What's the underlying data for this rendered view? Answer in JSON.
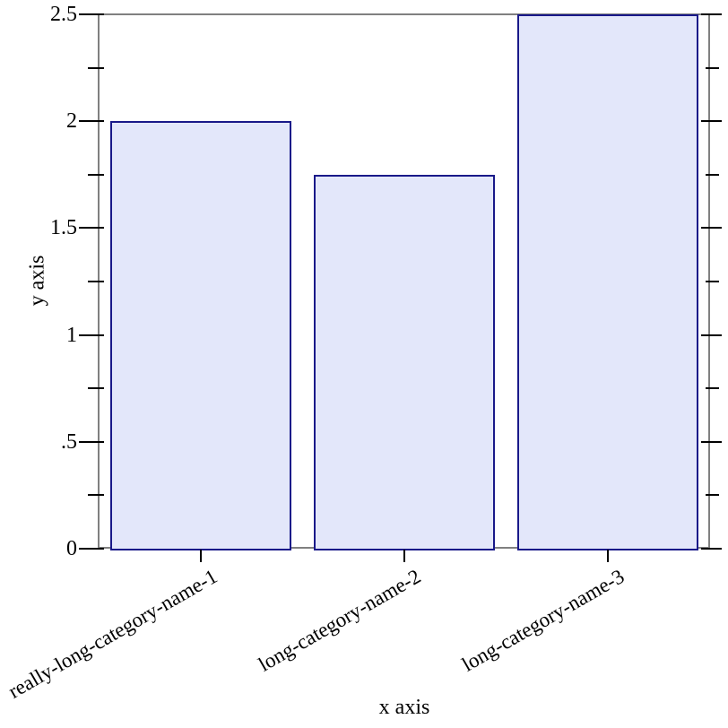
{
  "chart_data": {
    "type": "bar",
    "title": "",
    "categories": [
      "really-long-category-name-1",
      "long-category-name-2",
      "long-category-name-3"
    ],
    "values": [
      2,
      1.75,
      2.5
    ],
    "xlabel": "x axis",
    "ylabel": "y axis",
    "ylim": [
      0,
      2.5
    ],
    "y_major_ticks": [
      {
        "value": 0,
        "label": "0"
      },
      {
        "value": 0.5,
        "label": ".5"
      },
      {
        "value": 1,
        "label": "1"
      },
      {
        "value": 1.5,
        "label": "1.5"
      },
      {
        "value": 2,
        "label": "2"
      },
      {
        "value": 2.5,
        "label": "2.5"
      }
    ],
    "y_minor_ticks": [
      0.25,
      0.75,
      1.25,
      1.75,
      2.25
    ],
    "grid": false,
    "legend": "none",
    "colors": {
      "bar_fill": "#e3e7fa",
      "bar_border": "#191989",
      "frame": "#808080",
      "tick": "#000000",
      "text": "#000000",
      "background": "#ffffff"
    }
  }
}
